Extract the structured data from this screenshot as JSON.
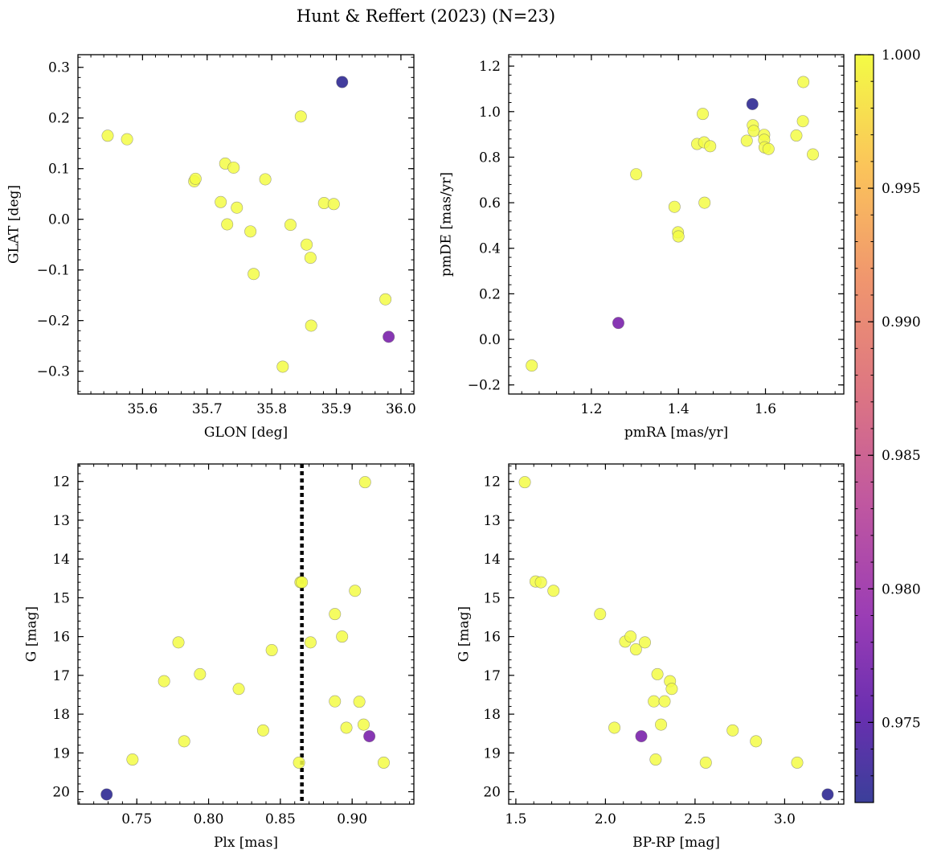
{
  "figure": {
    "title": "Hunt & Reffert (2023) (N=23)"
  },
  "colormap": {
    "name": "plasma",
    "low_color": "#3a3f9b",
    "mid_color": "#e07a80",
    "high_color": "#f0f921"
  },
  "colorbar": {
    "range": [
      0.972,
      1.0
    ],
    "ticks": [
      0.975,
      0.98,
      0.985,
      0.99,
      0.995,
      1.0
    ],
    "tick_labels": [
      "0.975",
      "0.980",
      "0.985",
      "0.990",
      "0.995",
      "1.000"
    ]
  },
  "chart_data": [
    {
      "type": "scatter",
      "panel": "top-left",
      "xlabel": "GLON [deg]",
      "ylabel": "GLAT [deg]",
      "xlim": [
        35.5,
        36.02
      ],
      "ylim": [
        -0.345,
        0.325
      ],
      "xticks": [
        35.6,
        35.7,
        35.8,
        35.9,
        36.0
      ],
      "xtick_labels": [
        "35.6",
        "35.7",
        "35.8",
        "35.9",
        "36.0"
      ],
      "yticks": [
        -0.3,
        -0.2,
        -0.1,
        0.0,
        0.1,
        0.2,
        0.3
      ],
      "ytick_labels": [
        "−0.3",
        "−0.2",
        "−0.1",
        "0.0",
        "0.1",
        "0.2",
        "0.3"
      ],
      "points": [
        {
          "x": 35.546,
          "y": 0.165,
          "c": 1.0
        },
        {
          "x": 35.576,
          "y": 0.158,
          "c": 1.0
        },
        {
          "x": 35.68,
          "y": 0.075,
          "c": 1.0
        },
        {
          "x": 35.682,
          "y": 0.08,
          "c": 1.0
        },
        {
          "x": 35.721,
          "y": 0.034,
          "c": 1.0
        },
        {
          "x": 35.728,
          "y": 0.11,
          "c": 1.0
        },
        {
          "x": 35.731,
          "y": -0.01,
          "c": 1.0
        },
        {
          "x": 35.741,
          "y": 0.102,
          "c": 1.0
        },
        {
          "x": 35.746,
          "y": 0.023,
          "c": 1.0
        },
        {
          "x": 35.767,
          "y": -0.024,
          "c": 1.0
        },
        {
          "x": 35.772,
          "y": -0.108,
          "c": 1.0
        },
        {
          "x": 35.79,
          "y": 0.079,
          "c": 1.0
        },
        {
          "x": 35.817,
          "y": -0.291,
          "c": 1.0
        },
        {
          "x": 35.829,
          "y": -0.011,
          "c": 1.0
        },
        {
          "x": 35.845,
          "y": 0.203,
          "c": 1.0
        },
        {
          "x": 35.854,
          "y": -0.05,
          "c": 1.0
        },
        {
          "x": 35.86,
          "y": -0.076,
          "c": 1.0
        },
        {
          "x": 35.861,
          "y": -0.21,
          "c": 1.0
        },
        {
          "x": 35.881,
          "y": 0.032,
          "c": 1.0
        },
        {
          "x": 35.896,
          "y": 0.03,
          "c": 1.0
        },
        {
          "x": 35.909,
          "y": 0.271,
          "c": 0.9725
        },
        {
          "x": 35.976,
          "y": -0.158,
          "c": 1.0
        },
        {
          "x": 35.981,
          "y": -0.232,
          "c": 0.9775
        }
      ]
    },
    {
      "type": "scatter",
      "panel": "top-right",
      "xlabel": "pmRA [mas/yr]",
      "ylabel": "pmDE [mas/yr]",
      "xlim": [
        1.01,
        1.78
      ],
      "ylim": [
        -0.24,
        1.25
      ],
      "xticks": [
        1.2,
        1.4,
        1.6
      ],
      "xtick_labels": [
        "1.2",
        "1.4",
        "1.6"
      ],
      "yticks": [
        -0.2,
        0.0,
        0.2,
        0.4,
        0.6,
        0.8,
        1.0,
        1.2
      ],
      "ytick_labels": [
        "−0.2",
        "0.0",
        "0.2",
        "0.4",
        "0.6",
        "0.8",
        "1.0",
        "1.2"
      ],
      "points": [
        {
          "x": 1.063,
          "y": -0.115,
          "c": 1.0
        },
        {
          "x": 1.262,
          "y": 0.072,
          "c": 0.9775
        },
        {
          "x": 1.303,
          "y": 0.725,
          "c": 1.0
        },
        {
          "x": 1.391,
          "y": 0.582,
          "c": 1.0
        },
        {
          "x": 1.399,
          "y": 0.47,
          "c": 1.0
        },
        {
          "x": 1.4,
          "y": 0.452,
          "c": 1.0
        },
        {
          "x": 1.443,
          "y": 0.858,
          "c": 1.0
        },
        {
          "x": 1.456,
          "y": 0.99,
          "c": 1.0
        },
        {
          "x": 1.459,
          "y": 0.865,
          "c": 1.0
        },
        {
          "x": 1.46,
          "y": 0.6,
          "c": 1.0
        },
        {
          "x": 1.473,
          "y": 0.848,
          "c": 1.0
        },
        {
          "x": 1.557,
          "y": 0.872,
          "c": 1.0
        },
        {
          "x": 1.57,
          "y": 1.033,
          "c": 0.9725
        },
        {
          "x": 1.571,
          "y": 0.94,
          "c": 1.0
        },
        {
          "x": 1.573,
          "y": 0.915,
          "c": 1.0
        },
        {
          "x": 1.597,
          "y": 0.898,
          "c": 1.0
        },
        {
          "x": 1.597,
          "y": 0.876,
          "c": 1.0
        },
        {
          "x": 1.598,
          "y": 0.843,
          "c": 1.0
        },
        {
          "x": 1.607,
          "y": 0.836,
          "c": 1.0
        },
        {
          "x": 1.671,
          "y": 0.895,
          "c": 1.0
        },
        {
          "x": 1.686,
          "y": 0.958,
          "c": 1.0
        },
        {
          "x": 1.687,
          "y": 1.13,
          "c": 1.0
        },
        {
          "x": 1.709,
          "y": 0.812,
          "c": 1.0
        }
      ]
    },
    {
      "type": "scatter",
      "panel": "bottom-left",
      "xlabel": "Plx [mas]",
      "ylabel": "G [mag]",
      "xlim": [
        0.709,
        0.943
      ],
      "ylim": [
        20.32,
        11.55
      ],
      "y_inverted": true,
      "vline": {
        "x": 0.865,
        "style": "dotted",
        "color": "#000000"
      },
      "xticks": [
        0.75,
        0.8,
        0.85,
        0.9
      ],
      "xtick_labels": [
        "0.75",
        "0.80",
        "0.85",
        "0.90"
      ],
      "yticks": [
        12,
        13,
        14,
        15,
        16,
        17,
        18,
        19,
        20
      ],
      "ytick_labels": [
        "12",
        "13",
        "14",
        "15",
        "16",
        "17",
        "18",
        "19",
        "20"
      ],
      "points": [
        {
          "x": 0.729,
          "y": 20.07,
          "c": 0.9725
        },
        {
          "x": 0.747,
          "y": 19.17,
          "c": 1.0
        },
        {
          "x": 0.769,
          "y": 17.15,
          "c": 1.0
        },
        {
          "x": 0.779,
          "y": 16.15,
          "c": 1.0
        },
        {
          "x": 0.783,
          "y": 18.7,
          "c": 1.0
        },
        {
          "x": 0.794,
          "y": 16.97,
          "c": 1.0
        },
        {
          "x": 0.821,
          "y": 17.35,
          "c": 1.0
        },
        {
          "x": 0.838,
          "y": 18.42,
          "c": 1.0
        },
        {
          "x": 0.844,
          "y": 16.35,
          "c": 1.0
        },
        {
          "x": 0.863,
          "y": 19.25,
          "c": 1.0
        },
        {
          "x": 0.864,
          "y": 14.6,
          "c": 1.0
        },
        {
          "x": 0.865,
          "y": 14.6,
          "c": 1.0
        },
        {
          "x": 0.871,
          "y": 16.15,
          "c": 1.0
        },
        {
          "x": 0.888,
          "y": 15.42,
          "c": 1.0
        },
        {
          "x": 0.888,
          "y": 17.67,
          "c": 1.0
        },
        {
          "x": 0.893,
          "y": 16.0,
          "c": 1.0
        },
        {
          "x": 0.896,
          "y": 18.35,
          "c": 1.0
        },
        {
          "x": 0.902,
          "y": 14.82,
          "c": 1.0
        },
        {
          "x": 0.905,
          "y": 17.68,
          "c": 1.0
        },
        {
          "x": 0.908,
          "y": 18.27,
          "c": 1.0
        },
        {
          "x": 0.909,
          "y": 12.02,
          "c": 1.0
        },
        {
          "x": 0.912,
          "y": 18.57,
          "c": 0.9775
        },
        {
          "x": 0.922,
          "y": 19.25,
          "c": 1.0
        }
      ]
    },
    {
      "type": "scatter",
      "panel": "bottom-right",
      "xlabel": "BP-RP [mag]",
      "ylabel": "G [mag]",
      "xlim": [
        1.46,
        3.33
      ],
      "ylim": [
        20.32,
        11.55
      ],
      "y_inverted": true,
      "xticks": [
        1.5,
        2.0,
        2.5,
        3.0
      ],
      "xtick_labels": [
        "1.5",
        "2.0",
        "2.5",
        "3.0"
      ],
      "yticks": [
        12,
        13,
        14,
        15,
        16,
        17,
        18,
        19,
        20
      ],
      "ytick_labels": [
        "12",
        "13",
        "14",
        "15",
        "16",
        "17",
        "18",
        "19",
        "20"
      ],
      "points": [
        {
          "x": 1.55,
          "y": 12.02,
          "c": 1.0
        },
        {
          "x": 1.61,
          "y": 14.58,
          "c": 1.0
        },
        {
          "x": 1.64,
          "y": 14.6,
          "c": 1.0
        },
        {
          "x": 1.71,
          "y": 14.82,
          "c": 1.0
        },
        {
          "x": 1.97,
          "y": 15.42,
          "c": 1.0
        },
        {
          "x": 2.05,
          "y": 18.35,
          "c": 1.0
        },
        {
          "x": 2.11,
          "y": 16.13,
          "c": 1.0
        },
        {
          "x": 2.14,
          "y": 16.0,
          "c": 1.0
        },
        {
          "x": 2.17,
          "y": 16.33,
          "c": 1.0
        },
        {
          "x": 2.2,
          "y": 18.57,
          "c": 0.9775
        },
        {
          "x": 2.22,
          "y": 16.15,
          "c": 1.0
        },
        {
          "x": 2.27,
          "y": 17.67,
          "c": 1.0
        },
        {
          "x": 2.28,
          "y": 19.17,
          "c": 1.0
        },
        {
          "x": 2.29,
          "y": 16.97,
          "c": 1.0
        },
        {
          "x": 2.31,
          "y": 18.27,
          "c": 1.0
        },
        {
          "x": 2.33,
          "y": 17.67,
          "c": 1.0
        },
        {
          "x": 2.36,
          "y": 17.15,
          "c": 1.0
        },
        {
          "x": 2.37,
          "y": 17.35,
          "c": 1.0
        },
        {
          "x": 2.56,
          "y": 19.25,
          "c": 1.0
        },
        {
          "x": 2.71,
          "y": 18.42,
          "c": 1.0
        },
        {
          "x": 2.84,
          "y": 18.7,
          "c": 1.0
        },
        {
          "x": 3.07,
          "y": 19.25,
          "c": 1.0
        },
        {
          "x": 3.24,
          "y": 20.07,
          "c": 0.9725
        }
      ]
    }
  ]
}
